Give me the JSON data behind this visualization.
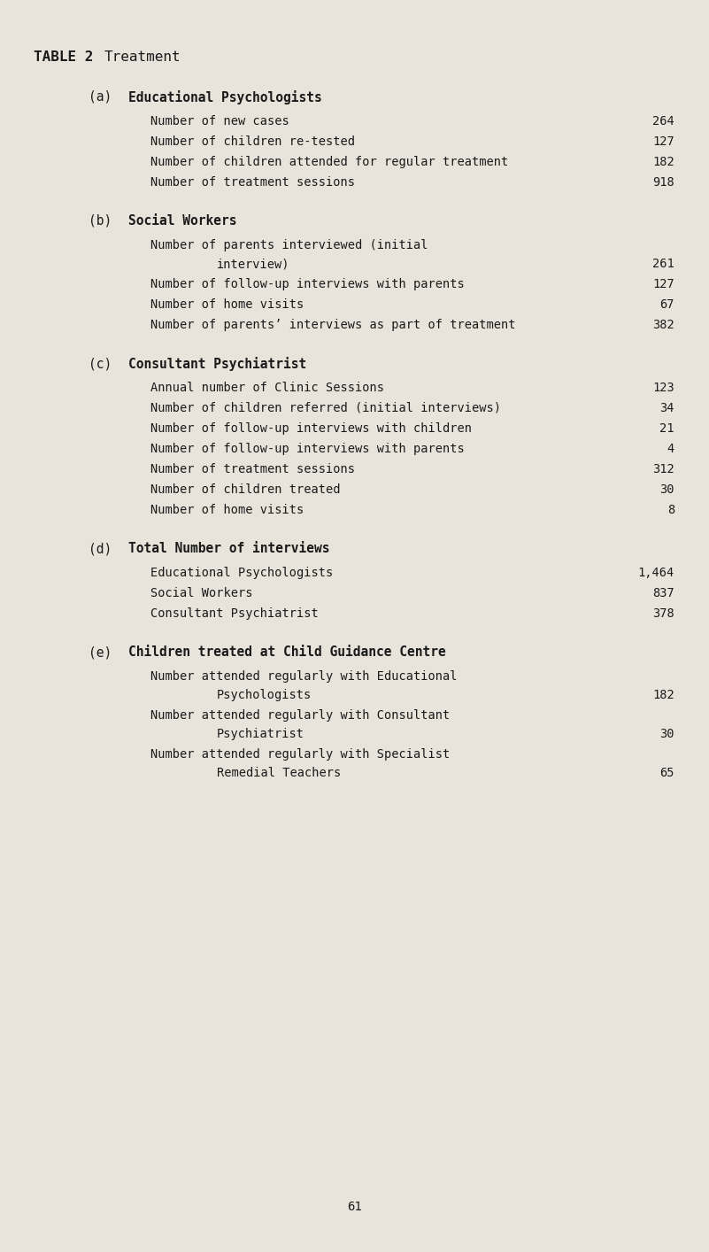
{
  "title_part1": "TABLE 2",
  "title_part2": "Treatment",
  "background_color": "#e8e4db",
  "text_color": "#1a1a1a",
  "page_number": "61",
  "sections": [
    {
      "label": "(a)",
      "heading": "Educational Psychologists",
      "items": [
        {
          "text": "Number of new cases",
          "value": "264",
          "two_line": false
        },
        {
          "text": "Number of children re-tested",
          "value": "127",
          "two_line": false
        },
        {
          "text": "Number of children attended for regular treatment",
          "value": "182",
          "two_line": false
        },
        {
          "text": "Number of treatment sessions",
          "value": "918",
          "two_line": false
        }
      ]
    },
    {
      "label": "(b)",
      "heading": "Social Workers",
      "items": [
        {
          "text": "Number of parents interviewed (initial",
          "text2": "interview)",
          "value": "261",
          "two_line": true
        },
        {
          "text": "Number of follow-up interviews with parents",
          "value": "127",
          "two_line": false
        },
        {
          "text": "Number of home visits",
          "value": "67",
          "two_line": false
        },
        {
          "text": "Number of parents’ interviews as part of treatment",
          "value": "382",
          "two_line": false
        }
      ]
    },
    {
      "label": "(c)",
      "heading": "Consultant Psychiatrist",
      "items": [
        {
          "text": "Annual number of Clinic Sessions",
          "value": "123",
          "two_line": false
        },
        {
          "text": "Number of children referred (initial interviews)",
          "value": "34",
          "two_line": false
        },
        {
          "text": "Number of follow-up interviews with children",
          "value": "21",
          "two_line": false
        },
        {
          "text": "Number of follow-up interviews with parents",
          "value": "4",
          "two_line": false
        },
        {
          "text": "Number of treatment sessions",
          "value": "312",
          "two_line": false
        },
        {
          "text": "Number of children treated",
          "value": "30",
          "two_line": false
        },
        {
          "text": "Number of home visits",
          "value": "8",
          "two_line": false
        }
      ]
    },
    {
      "label": "(d)",
      "heading": "Total Number of interviews",
      "items": [
        {
          "text": "Educational Psychologists",
          "value": "1,464",
          "two_line": false
        },
        {
          "text": "Social Workers",
          "value": "837",
          "two_line": false
        },
        {
          "text": "Consultant Psychiatrist",
          "value": "378",
          "two_line": false
        }
      ]
    },
    {
      "label": "(e)",
      "heading": "Children treated at Child Guidance Centre",
      "items": [
        {
          "text": "Number attended regularly with Educational",
          "text2": "Psychologists",
          "value": "182",
          "two_line": true
        },
        {
          "text": "Number attended regularly with Consultant",
          "text2": "Psychiatrist",
          "value": "30",
          "two_line": true
        },
        {
          "text": "Number attended regularly with Specialist",
          "text2": "Remedial Teachers",
          "value": "65",
          "two_line": true
        }
      ]
    }
  ],
  "font_size_title": 11.5,
  "font_size_heading": 10.5,
  "font_size_text": 9.8,
  "font_size_page": 10
}
